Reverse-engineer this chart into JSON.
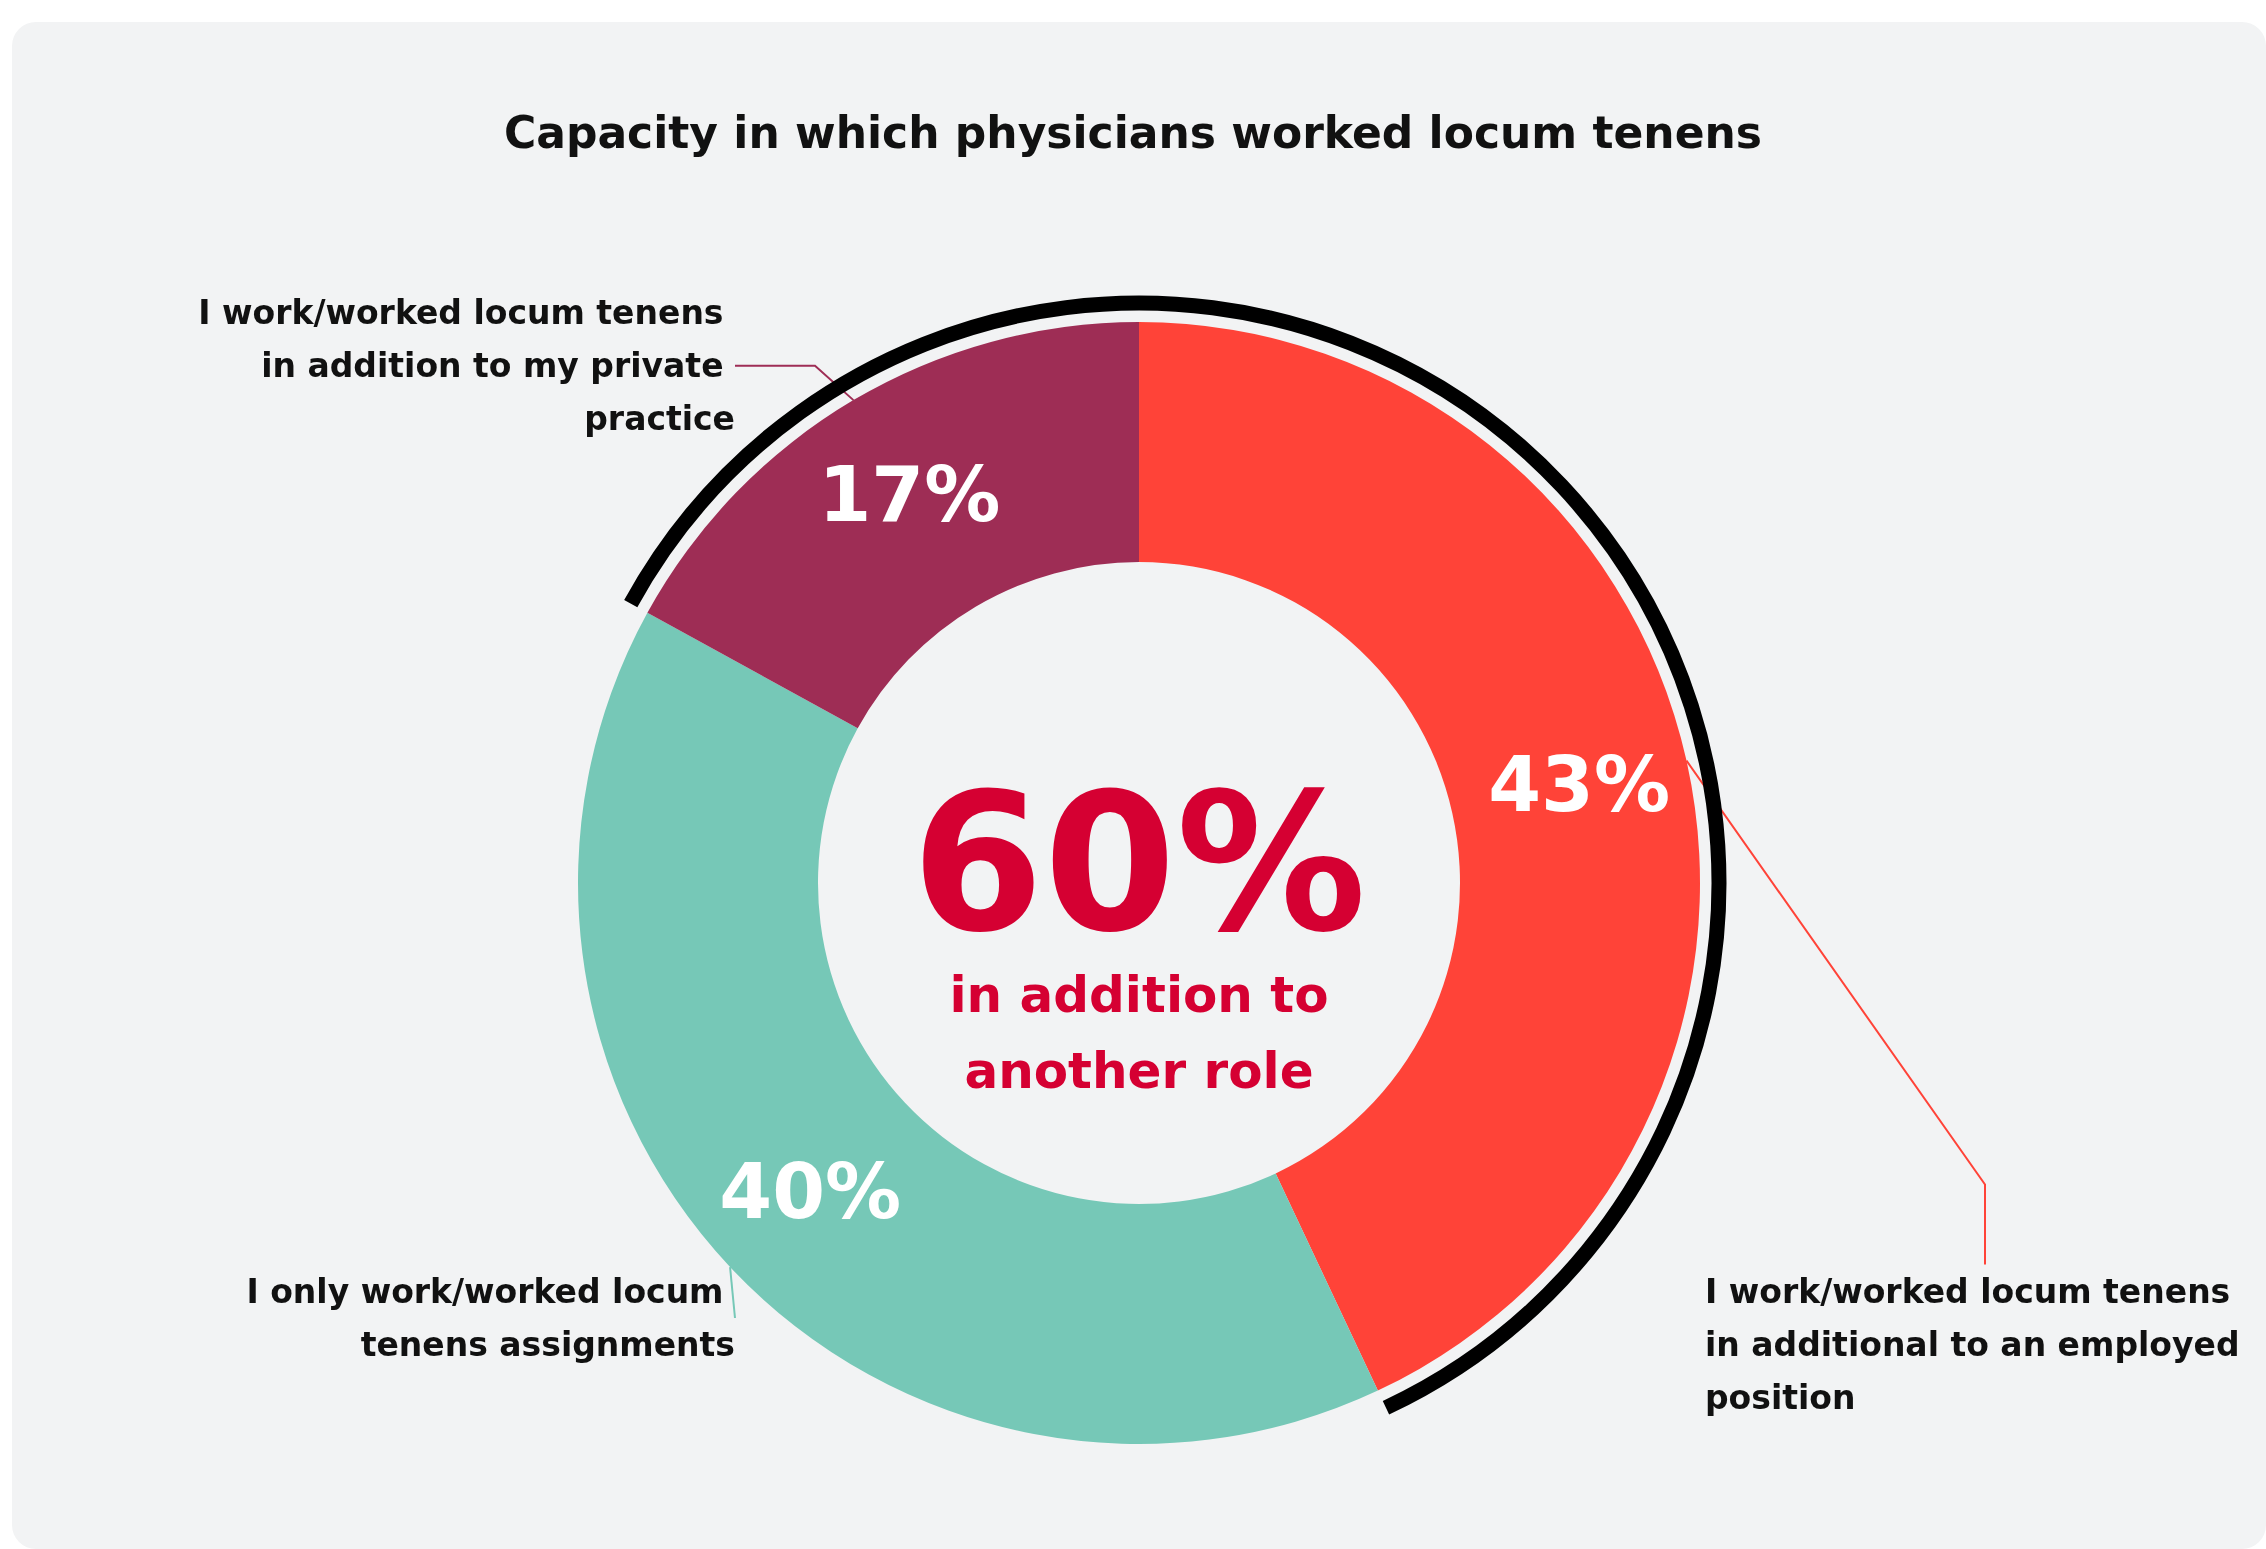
{
  "chart_data": {
    "type": "donut",
    "title": "Capacity in which physicians worked locum tenens",
    "categories": [
      "I work/worked locum tenens in additional to an employed position",
      "I only work/worked locum tenens assignments",
      "I work/worked locum tenens in addition to my private practice"
    ],
    "values": [
      43,
      40,
      17
    ],
    "colors": [
      "#ff4338",
      "#76c8b7",
      "#9e2d55"
    ],
    "value_labels": [
      "43%",
      "40%",
      "17%"
    ],
    "annotations": [
      "60%",
      "in addition to\nanother role"
    ]
  }
}
